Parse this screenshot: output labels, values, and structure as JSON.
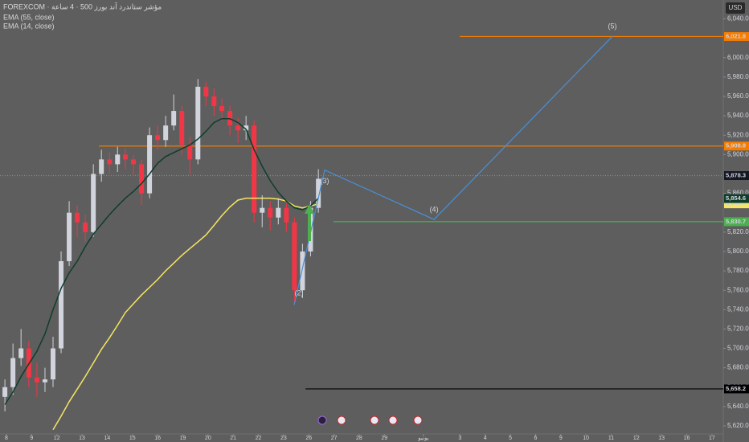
{
  "chart_data": {
    "type": "candlestick",
    "title": "FOREXCOM · مؤشر ستاندرد آند بورز 500 · 4 ساعة",
    "currency": "USD",
    "up_color": "#d1d4dc",
    "down_color": "#f23645",
    "x": [
      -0.06,
      0.26,
      0.58,
      0.89,
      1.21,
      1.53,
      1.85,
      2.17,
      2.49,
      2.81,
      3.13,
      3.45,
      3.77,
      4.09,
      4.41,
      4.72,
      5.04,
      5.36,
      5.68,
      6.0,
      6.32,
      6.64,
      6.96,
      7.28,
      7.6,
      7.92,
      8.24,
      8.55,
      8.87,
      9.19,
      9.51,
      9.83,
      10.15,
      10.47,
      10.79,
      11.11,
      11.43,
      11.75,
      12.07,
      12.38
    ],
    "open": [
      5650,
      5660,
      5690,
      5700,
      5670,
      5665,
      5668,
      5700,
      5790,
      5840,
      5830,
      5820,
      5880,
      5895,
      5890,
      5900,
      5895,
      5890,
      5860,
      5920,
      5915,
      5930,
      5945,
      5910,
      5895,
      5970,
      5960,
      5950,
      5945,
      5930,
      5925,
      5930,
      5840,
      5845,
      5835,
      5845,
      5830,
      5760,
      5800,
      5845
    ],
    "high": [
      5668,
      5705,
      5720,
      5708,
      5685,
      5680,
      5712,
      5800,
      5852,
      5848,
      5838,
      5890,
      5905,
      5902,
      5908,
      5906,
      5900,
      5895,
      5928,
      5930,
      5940,
      5962,
      5950,
      5918,
      5978,
      5975,
      5968,
      5958,
      5950,
      5938,
      5940,
      5935,
      5858,
      5852,
      5855,
      5850,
      5835,
      5808,
      5852,
      5885
    ],
    "low": [
      5635,
      5652,
      5682,
      5660,
      5650,
      5655,
      5660,
      5695,
      5785,
      5815,
      5810,
      5815,
      5872,
      5880,
      5882,
      5885,
      5878,
      5848,
      5855,
      5905,
      5908,
      5925,
      5900,
      5880,
      5890,
      5950,
      5940,
      5935,
      5920,
      5912,
      5915,
      5830,
      5825,
      5822,
      5828,
      5820,
      5745,
      5752,
      5795,
      5840
    ],
    "close": [
      5660,
      5690,
      5700,
      5670,
      5665,
      5668,
      5700,
      5790,
      5840,
      5830,
      5820,
      5880,
      5895,
      5890,
      5900,
      5895,
      5890,
      5860,
      5920,
      5915,
      5930,
      5945,
      5910,
      5895,
      5970,
      5960,
      5950,
      5945,
      5930,
      5925,
      5930,
      5840,
      5845,
      5835,
      5845,
      5830,
      5760,
      5800,
      5845,
      5875
    ],
    "series": [
      {
        "name": "EMA (55, close)",
        "color": "#f5e663",
        "last_value": 5849.2,
        "last_label": "5,849.2",
        "values": [
          null,
          null,
          null,
          null,
          null,
          null,
          5616,
          5630,
          5645,
          5658,
          5671,
          5685,
          5699,
          5711,
          5724,
          5737,
          5746,
          5755,
          5763,
          5771,
          5780,
          5788,
          5796,
          5803,
          5810,
          5817,
          5827,
          5837,
          5846,
          5853,
          5855,
          5855,
          5855,
          5855,
          5854,
          5852,
          5847,
          5845,
          5847,
          5849
        ]
      },
      {
        "name": "EMA (14, close)",
        "color": "#0f3d2a",
        "last_value": 5854.6,
        "last_label": "5,854.6",
        "values": [
          5642,
          5655,
          5671,
          5684,
          5697,
          5715,
          5740,
          5762,
          5778,
          5790,
          5805,
          5818,
          5828,
          5838,
          5847,
          5855,
          5862,
          5870,
          5880,
          5891,
          5898,
          5902,
          5906,
          5910,
          5916,
          5924,
          5933,
          5937,
          5937,
          5933,
          5926,
          5905,
          5888,
          5873,
          5861,
          5852,
          5845,
          5843,
          5847,
          5855
        ]
      }
    ],
    "levels": [
      {
        "value": 6021.8,
        "label": "6,021.8",
        "color": "#f57c00",
        "label_color": "#f57c00",
        "x_start": 17.99
      },
      {
        "value": 5908.8,
        "label": "5,908.8",
        "color": "#f57c00",
        "label_color": "#f57c00",
        "x_start": 3.67
      },
      {
        "value": 5878.3,
        "label": "5,878.3",
        "color": "#8a8a8a",
        "label_color": "#131722"
      },
      {
        "value": 5830.7,
        "label": "5,830.7",
        "color": "#4caf50",
        "label_color": "#4caf50",
        "x_start": 12.98
      },
      {
        "value": 5658.2,
        "label": "5,658.2",
        "color": "#000000",
        "label_color": "#000000",
        "x_start": 11.87
      }
    ],
    "wave": {
      "color": "#4a8fd6",
      "x": [
        11.42,
        12.63,
        16.97,
        24.05
      ],
      "values": [
        5745,
        5884,
        5833,
        6022
      ],
      "labels": [
        "(2)",
        "(3)",
        "(4)",
        "(5)"
      ]
    },
    "xlim": [
      -0.255,
      28.45
    ],
    "ylim": [
      5611.7,
      6059.5
    ],
    "xticks": [
      {
        "value": 0,
        "label": "8"
      },
      {
        "value": 1,
        "label": "9"
      },
      {
        "value": 2,
        "label": "12"
      },
      {
        "value": 3,
        "label": "13"
      },
      {
        "value": 4,
        "label": "14"
      },
      {
        "value": 5,
        "label": "15"
      },
      {
        "value": 6,
        "label": "16"
      },
      {
        "value": 7,
        "label": "19"
      },
      {
        "value": 8,
        "label": "20"
      },
      {
        "value": 9,
        "label": "21"
      },
      {
        "value": 10,
        "label": "22"
      },
      {
        "value": 11,
        "label": "23"
      },
      {
        "value": 12,
        "label": "26"
      },
      {
        "value": 13,
        "label": "27"
      },
      {
        "value": 14,
        "label": "28"
      },
      {
        "value": 15,
        "label": "29"
      },
      {
        "value": 16.55,
        "label": "يونيو"
      },
      {
        "value": 18,
        "label": "3"
      },
      {
        "value": 19,
        "label": "4"
      },
      {
        "value": 20,
        "label": "5"
      },
      {
        "value": 21,
        "label": "6"
      },
      {
        "value": 22,
        "label": "9"
      },
      {
        "value": 23,
        "label": "10"
      },
      {
        "value": 24,
        "label": "11"
      },
      {
        "value": 25,
        "label": "12"
      },
      {
        "value": 26,
        "label": "13"
      },
      {
        "value": 27,
        "label": "16"
      },
      {
        "value": 28,
        "label": "17"
      }
    ],
    "yticks": [
      {
        "value": 5620,
        "label": "5,620.0"
      },
      {
        "value": 5640,
        "label": "5,640.0"
      },
      {
        "value": 5660,
        "label": "5,660.0"
      },
      {
        "value": 5680,
        "label": "5,680.0"
      },
      {
        "value": 5700,
        "label": "5,700.0"
      },
      {
        "value": 5720,
        "label": "5,720.0"
      },
      {
        "value": 5740,
        "label": "5,740.0"
      },
      {
        "value": 5760,
        "label": "5,760.0"
      },
      {
        "value": 5780,
        "label": "5,780.0"
      },
      {
        "value": 5800,
        "label": "5,800.0"
      },
      {
        "value": 5820,
        "label": "5,820.0"
      },
      {
        "value": 5860,
        "label": "5,860.0"
      },
      {
        "value": 5900,
        "label": "5,900.0"
      },
      {
        "value": 5920,
        "label": "5,920.0"
      },
      {
        "value": 5940,
        "label": "5,940.0"
      },
      {
        "value": 5960,
        "label": "5,960.0"
      },
      {
        "value": 5980,
        "label": "5,980.0"
      },
      {
        "value": 6000,
        "label": "6,000.0"
      },
      {
        "value": 6040,
        "label": "6,040.0"
      }
    ]
  }
}
